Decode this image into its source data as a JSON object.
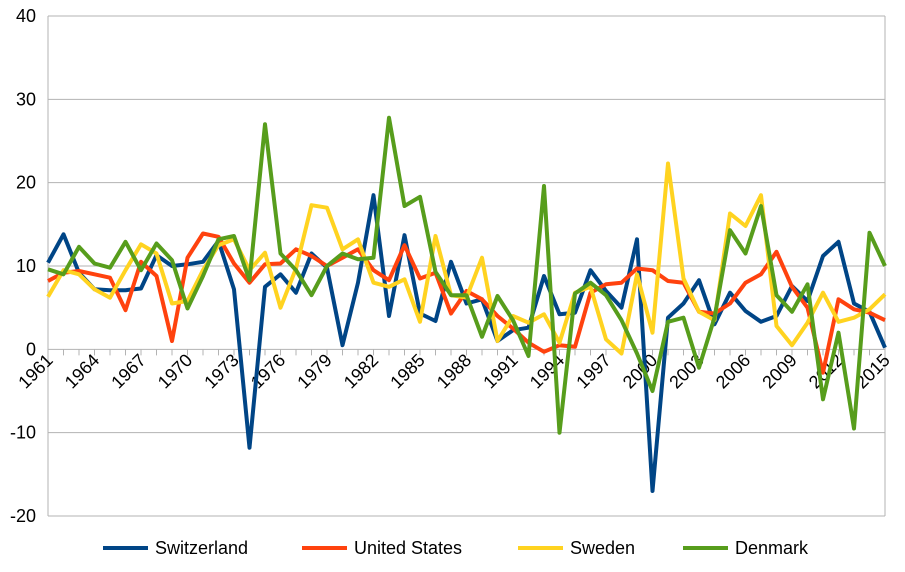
{
  "chart_data": {
    "type": "line",
    "categories": [
      "1961",
      null,
      null,
      "1964",
      null,
      null,
      "1967",
      null,
      null,
      "1970",
      null,
      null,
      "1973",
      null,
      null,
      "1976",
      null,
      null,
      "1979",
      null,
      null,
      "1982",
      null,
      null,
      "1985",
      null,
      null,
      "1988",
      null,
      null,
      "1991",
      null,
      null,
      "1994",
      null,
      null,
      "1997",
      null,
      null,
      "2000",
      null,
      null,
      "2003",
      null,
      null,
      "2006",
      null,
      null,
      "2009",
      null,
      null,
      "2012",
      null,
      null,
      "2015"
    ],
    "series": [
      {
        "name": "Switzerland",
        "color": "#004586",
        "values": [
          10.4,
          13.8,
          9.2,
          7.2,
          7.1,
          7.1,
          7.3,
          11.3,
          10,
          10.2,
          10.5,
          13,
          7.2,
          -11.8,
          7.5,
          9,
          6.8,
          11.5,
          9.8,
          0.5,
          8,
          18.5,
          4,
          13.7,
          4.3,
          3.4,
          10.5,
          5.5,
          6,
          1,
          2.3,
          2.6,
          8.8,
          4.2,
          4.4,
          9.5,
          7,
          5,
          13.2,
          -17,
          3.8,
          5.5,
          8.3,
          3,
          6.8,
          4.6,
          3.3,
          4,
          7.6,
          5.8,
          11.2,
          12.9,
          5.5,
          4.5,
          0.2
        ]
      },
      {
        "name": "United States",
        "color": "#ff420e",
        "values": [
          8.2,
          9.2,
          9.4,
          9,
          8.6,
          4.7,
          10.5,
          8.8,
          1,
          11,
          13.9,
          13.5,
          10.3,
          8,
          10.2,
          10.3,
          12,
          11.2,
          10,
          11,
          12,
          9.5,
          8.3,
          12.5,
          8.5,
          9.2,
          4.3,
          7,
          6,
          4,
          2.5,
          0.8,
          -0.3,
          0.5,
          0.3,
          6.8,
          7.8,
          8,
          9.7,
          9.5,
          8.2,
          8,
          4.5,
          4.3,
          5.5,
          8,
          9,
          11.7,
          7.5,
          5,
          -2.8,
          6,
          4.8,
          4.4,
          3.5
        ]
      },
      {
        "name": "Sweden",
        "color": "#ffd320",
        "values": [
          6.3,
          9.5,
          9,
          7.2,
          6.2,
          9.5,
          12.6,
          11.5,
          5.5,
          5.8,
          9.5,
          12.5,
          13.2,
          9.5,
          11.6,
          5,
          9.7,
          17.3,
          17,
          12,
          13.2,
          8,
          7.5,
          8.4,
          3.3,
          13.6,
          6.5,
          6.2,
          11,
          1,
          4,
          3.2,
          4.2,
          0.8,
          6.8,
          7.5,
          1.2,
          -0.5,
          9,
          2,
          22.3,
          8.5,
          4.5,
          3.5,
          16.3,
          14.8,
          18.5,
          2.8,
          0.5,
          3.2,
          6.8,
          3.3,
          3.8,
          4.8,
          6.6
        ]
      },
      {
        "name": "Denmark",
        "color": "#579d1c",
        "values": [
          9.6,
          9,
          12.3,
          10.3,
          9.8,
          12.9,
          9.5,
          12.7,
          10.7,
          4.9,
          8.8,
          13.2,
          13.6,
          8.3,
          27,
          11.5,
          9.5,
          6.5,
          10,
          11.5,
          10.8,
          11,
          27.8,
          17.2,
          18.3,
          9.3,
          6.5,
          6.5,
          1.5,
          6.4,
          3.5,
          -0.8,
          19.6,
          -10,
          6.7,
          8,
          6.5,
          3.5,
          -0.5,
          -5,
          3.3,
          3.8,
          -2.2,
          3.8,
          14.3,
          11.5,
          17.2,
          6.5,
          4.5,
          7.8,
          -6,
          2,
          -9.5,
          14,
          10
        ]
      }
    ],
    "ylim": [
      -20,
      40
    ],
    "yticks": [
      -20,
      -10,
      0,
      10,
      20,
      30,
      40
    ],
    "grid": true,
    "legend": "bottom"
  }
}
